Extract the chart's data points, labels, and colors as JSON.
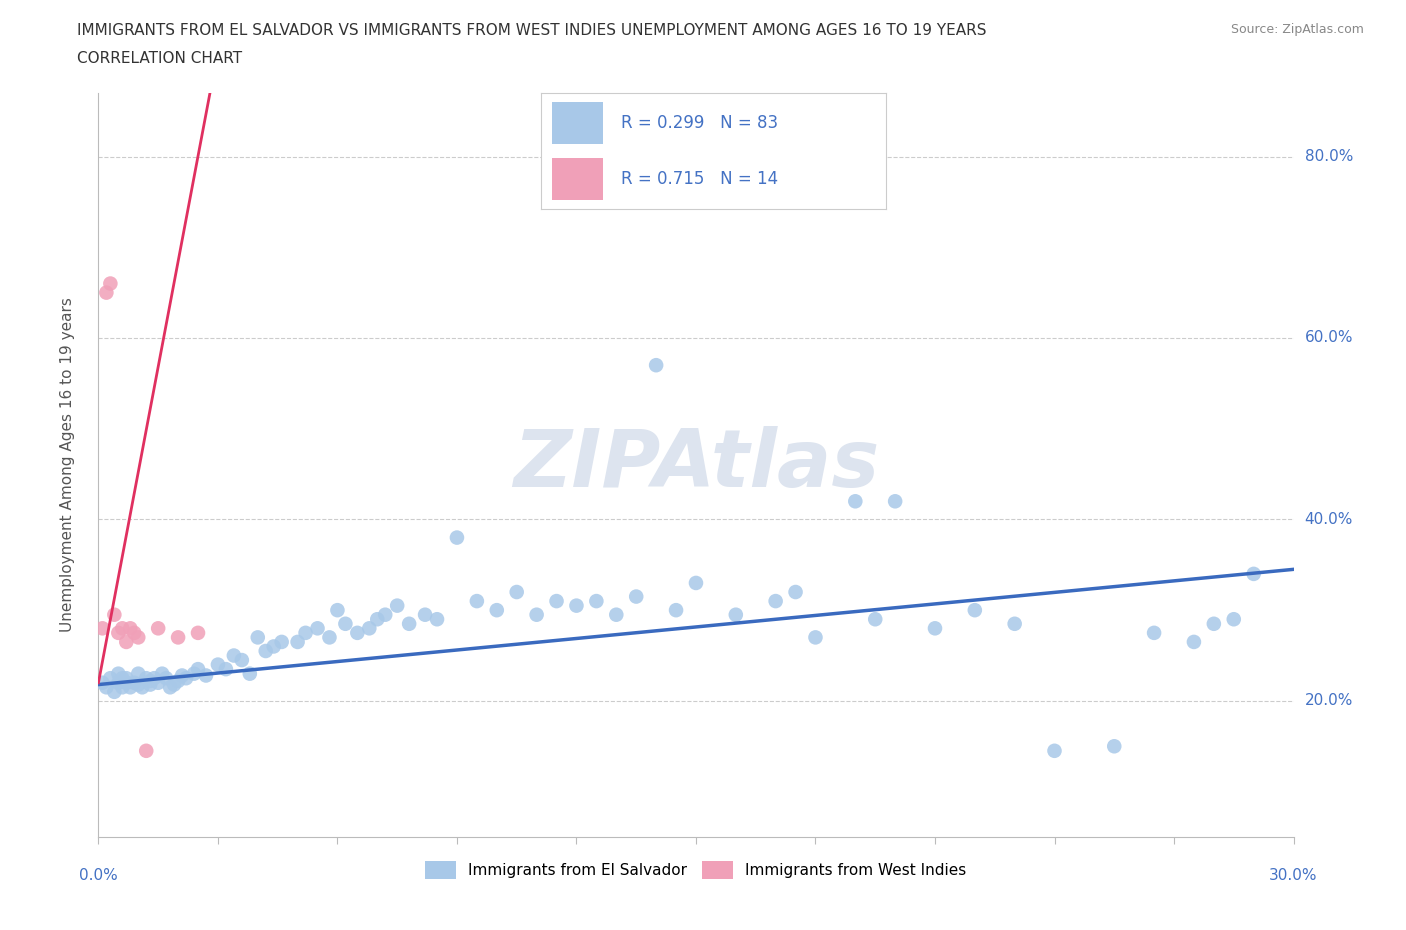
{
  "title_line1": "IMMIGRANTS FROM EL SALVADOR VS IMMIGRANTS FROM WEST INDIES UNEMPLOYMENT AMONG AGES 16 TO 19 YEARS",
  "title_line2": "CORRELATION CHART",
  "source_text": "Source: ZipAtlas.com",
  "ylabel_label": "Unemployment Among Ages 16 to 19 years",
  "xmin": 0.0,
  "xmax": 0.3,
  "ymin": 0.05,
  "ymax": 0.87,
  "r1": 0.299,
  "n1": 83,
  "r2": 0.715,
  "n2": 14,
  "color_el_salvador": "#a8c8e8",
  "color_west_indies": "#f0a0b8",
  "line_color_el_salvador": "#3a6abf",
  "line_color_west_indies": "#e03060",
  "watermark_color": "#dde4ef",
  "el_salvador_x": [
    0.001,
    0.002,
    0.003,
    0.004,
    0.005,
    0.005,
    0.006,
    0.006,
    0.007,
    0.007,
    0.008,
    0.009,
    0.01,
    0.01,
    0.011,
    0.012,
    0.013,
    0.013,
    0.014,
    0.015,
    0.016,
    0.017,
    0.018,
    0.019,
    0.02,
    0.021,
    0.022,
    0.024,
    0.025,
    0.027,
    0.03,
    0.032,
    0.034,
    0.036,
    0.038,
    0.04,
    0.042,
    0.044,
    0.046,
    0.05,
    0.052,
    0.055,
    0.058,
    0.06,
    0.062,
    0.065,
    0.068,
    0.07,
    0.072,
    0.075,
    0.078,
    0.082,
    0.085,
    0.09,
    0.095,
    0.1,
    0.105,
    0.11,
    0.115,
    0.12,
    0.125,
    0.13,
    0.135,
    0.14,
    0.145,
    0.15,
    0.16,
    0.17,
    0.175,
    0.18,
    0.19,
    0.195,
    0.2,
    0.21,
    0.22,
    0.23,
    0.24,
    0.255,
    0.265,
    0.275,
    0.28,
    0.285,
    0.29
  ],
  "el_salvador_y": [
    0.22,
    0.215,
    0.225,
    0.21,
    0.23,
    0.22,
    0.215,
    0.225,
    0.22,
    0.225,
    0.215,
    0.22,
    0.23,
    0.218,
    0.215,
    0.225,
    0.222,
    0.218,
    0.225,
    0.22,
    0.23,
    0.225,
    0.215,
    0.218,
    0.222,
    0.228,
    0.225,
    0.23,
    0.235,
    0.228,
    0.24,
    0.235,
    0.25,
    0.245,
    0.23,
    0.27,
    0.255,
    0.26,
    0.265,
    0.265,
    0.275,
    0.28,
    0.27,
    0.3,
    0.285,
    0.275,
    0.28,
    0.29,
    0.295,
    0.305,
    0.285,
    0.295,
    0.29,
    0.38,
    0.31,
    0.3,
    0.32,
    0.295,
    0.31,
    0.305,
    0.31,
    0.295,
    0.315,
    0.57,
    0.3,
    0.33,
    0.295,
    0.31,
    0.32,
    0.27,
    0.42,
    0.29,
    0.42,
    0.28,
    0.3,
    0.285,
    0.145,
    0.15,
    0.275,
    0.265,
    0.285,
    0.29,
    0.34
  ],
  "west_indies_x": [
    0.001,
    0.002,
    0.003,
    0.004,
    0.005,
    0.006,
    0.007,
    0.008,
    0.009,
    0.01,
    0.012,
    0.015,
    0.02,
    0.025
  ],
  "west_indies_y": [
    0.28,
    0.65,
    0.66,
    0.295,
    0.275,
    0.28,
    0.265,
    0.28,
    0.275,
    0.27,
    0.145,
    0.28,
    0.27,
    0.275
  ],
  "el_salvador_line_x": [
    0.0,
    0.3
  ],
  "el_salvador_line_y": [
    0.218,
    0.345
  ],
  "west_indies_line_x": [
    0.0,
    0.028
  ],
  "west_indies_line_y": [
    0.22,
    0.87
  ]
}
